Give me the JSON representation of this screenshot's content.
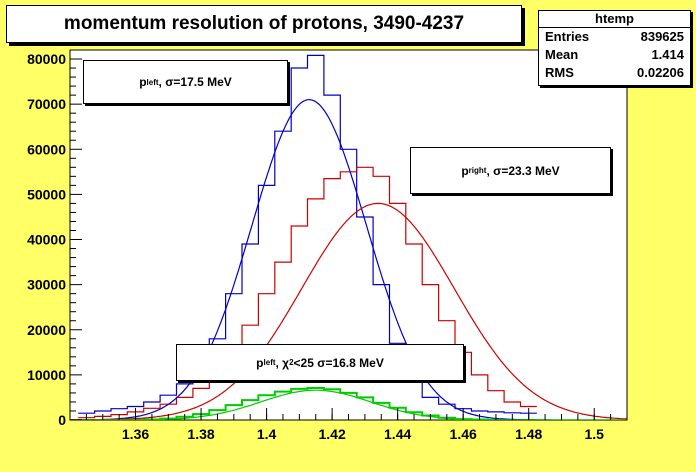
{
  "chart_data": {
    "type": "line",
    "title": "momentum resolution of protons, 3490-4237",
    "xlim": [
      1.34,
      1.51
    ],
    "ylim": [
      0,
      82000
    ],
    "x_ticks": [
      1.36,
      1.38,
      1.4,
      1.42,
      1.44,
      1.46,
      1.48,
      1.5
    ],
    "x_tick_labels": [
      "1.36",
      "1.38",
      "1.4",
      "1.42",
      "1.44",
      "1.46",
      "1.48",
      "1.5"
    ],
    "y_ticks": [
      0,
      10000,
      20000,
      30000,
      40000,
      50000,
      60000,
      70000,
      80000
    ],
    "y_tick_labels": [
      "0",
      "10000",
      "20000",
      "30000",
      "40000",
      "50000",
      "60000",
      "70000",
      "80000"
    ],
    "grid": false,
    "stats": {
      "name": "htemp",
      "rows": [
        {
          "label": "Entries",
          "value": "839625"
        },
        {
          "label": "Mean",
          "value": "1.414"
        },
        {
          "label": "RMS",
          "value": "0.02206"
        }
      ]
    },
    "annotations": {
      "left": {
        "p": "p",
        "sub": "left",
        "rest": ", σ=17.5 MeV"
      },
      "right": {
        "p": "p",
        "sub": "right",
        "rest": ", σ=23.3 MeV"
      },
      "cut": {
        "p": "p",
        "sub": "left",
        "mid": ", χ",
        "sup": "2",
        "rest": "<25 σ=16.8 MeV"
      }
    },
    "hist_bin_start": 1.3425,
    "hist_bin_width": 0.005,
    "series": [
      {
        "color": "#0000cc",
        "kind": "hist",
        "values": [
          1500,
          2000,
          2500,
          3000,
          4000,
          5500,
          8000,
          11500,
          18000,
          28000,
          39000,
          52000,
          64000,
          78000,
          80800,
          72000,
          60000,
          45000,
          30000,
          17000,
          9000,
          5000,
          3500,
          2500,
          2000,
          1800,
          1600,
          1500
        ]
      },
      {
        "color": "#cc0000",
        "kind": "hist",
        "values": [
          500,
          800,
          1200,
          1800,
          2600,
          3500,
          5000,
          7000,
          10000,
          15000,
          21000,
          28000,
          35000,
          43000,
          49000,
          53500,
          55000,
          56000,
          54000,
          48000,
          39000,
          30000,
          22000,
          15000,
          10000,
          6500,
          4000,
          3000
        ]
      },
      {
        "color": "#00cc00",
        "kind": "hist",
        "values": [
          0,
          0,
          0,
          0,
          100,
          300,
          700,
          1300,
          2200,
          3300,
          4400,
          5500,
          6300,
          6900,
          7100,
          6800,
          6000,
          5000,
          3800,
          2700,
          1700,
          1000,
          500,
          200,
          100,
          0,
          0,
          0
        ]
      },
      {
        "color": "#0000cc",
        "kind": "fit",
        "amplitude": 71000,
        "mean": 1.413,
        "sigma": 0.0175
      },
      {
        "color": "#cc0000",
        "kind": "fit",
        "amplitude": 48000,
        "mean": 1.434,
        "sigma": 0.0233
      },
      {
        "color": "#00cc00",
        "kind": "fit",
        "amplitude": 6600,
        "mean": 1.415,
        "sigma": 0.0168
      }
    ]
  }
}
